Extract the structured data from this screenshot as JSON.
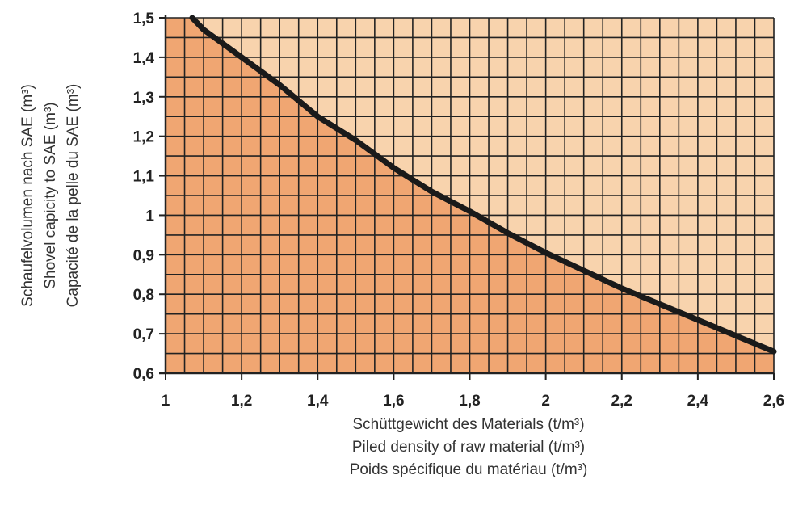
{
  "chart_data": {
    "type": "area",
    "title": "",
    "x_axis": {
      "min": 1,
      "max": 2.6,
      "ticks": [
        "1",
        "1,2",
        "1,4",
        "1,6",
        "1,8",
        "2",
        "2,2",
        "2,4",
        "2,6"
      ],
      "tick_values": [
        1,
        1.2,
        1.4,
        1.6,
        1.8,
        2,
        2.2,
        2.4,
        2.6
      ],
      "labels": [
        "Schüttgewicht des Materials (t/m³)",
        "Piled density of raw material (t/m³)",
        "Poids spécifique du matériau (t/m³)"
      ]
    },
    "y_axis": {
      "min": 0.6,
      "max": 1.5,
      "ticks": [
        "0,6",
        "0,7",
        "0,8",
        "0,9",
        "1",
        "1,1",
        "1,2",
        "1,3",
        "1,4",
        "1,5"
      ],
      "tick_values": [
        0.6,
        0.7,
        0.8,
        0.9,
        1,
        1.1,
        1.2,
        1.3,
        1.4,
        1.5
      ],
      "labels": [
        "Schaufelvolumen nach SAE (m³)",
        "Shovel capicity to SAE (m³)",
        "Capacité de la pelle du SAE (m³)"
      ]
    },
    "series": [
      {
        "x": [
          1.07,
          1.1,
          1.2,
          1.3,
          1.4,
          1.5,
          1.6,
          1.7,
          1.8,
          1.9,
          2.0,
          2.1,
          2.2,
          2.3,
          2.4,
          2.5,
          2.6
        ],
        "y": [
          1.5,
          1.47,
          1.4,
          1.33,
          1.25,
          1.19,
          1.12,
          1.06,
          1.01,
          0.955,
          0.905,
          0.86,
          0.815,
          0.775,
          0.735,
          0.695,
          0.655
        ]
      }
    ],
    "grid": {
      "x_minor_step": 0.05,
      "y_minor_step": 0.05
    },
    "colors": {
      "under_curve": "#f0a672",
      "above_curve": "#f8d3ad",
      "grid": "#222222",
      "curve": "#1a1a1a"
    }
  }
}
